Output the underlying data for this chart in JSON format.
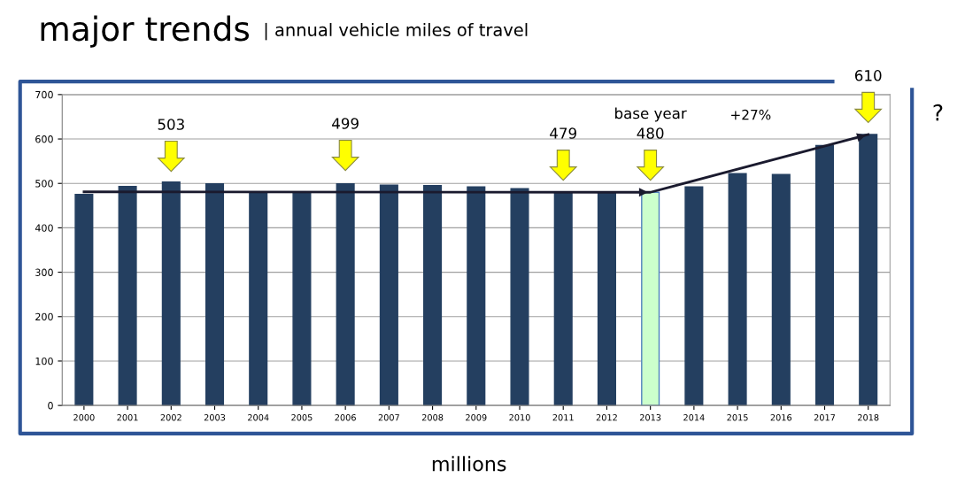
{
  "chart_data": {
    "type": "bar",
    "title": "major trends",
    "subtitle": "| annual vehicle miles of travel",
    "xlabel": "millions",
    "categories": [
      "2000",
      "2001",
      "2002",
      "2003",
      "2004",
      "2005",
      "2006",
      "2007",
      "2008",
      "2009",
      "2010",
      "2011",
      "2012",
      "2013",
      "2014",
      "2015",
      "2016",
      "2017",
      "2018"
    ],
    "series": [
      {
        "values": [
          475,
          493,
          503,
          499,
          481,
          480,
          499,
          496,
          495,
          492,
          488,
          479,
          480,
          480,
          492,
          522,
          520,
          585,
          610
        ],
        "colors": [
          "#243f60",
          "#243f60",
          "#243f60",
          "#243f60",
          "#243f60",
          "#243f60",
          "#243f60",
          "#243f60",
          "#243f60",
          "#243f60",
          "#243f60",
          "#243f60",
          "#243f60",
          "#ccffcc",
          "#243f60",
          "#243f60",
          "#243f60",
          "#243f60",
          "#243f60"
        ]
      },
      {
        "type": "line",
        "color": "#1a1a2e",
        "values": [
          481,
          null,
          null,
          null,
          null,
          null,
          null,
          null,
          null,
          null,
          null,
          null,
          null,
          480,
          null,
          null,
          null,
          null,
          610
        ]
      }
    ],
    "ylim": [
      0,
      700
    ],
    "yticks": [
      0,
      100,
      200,
      300,
      400,
      500,
      600,
      700
    ],
    "grid": "y",
    "annotations": [
      "503",
      "499",
      "479",
      "base year",
      "480",
      "+27%",
      "610",
      "?"
    ]
  }
}
